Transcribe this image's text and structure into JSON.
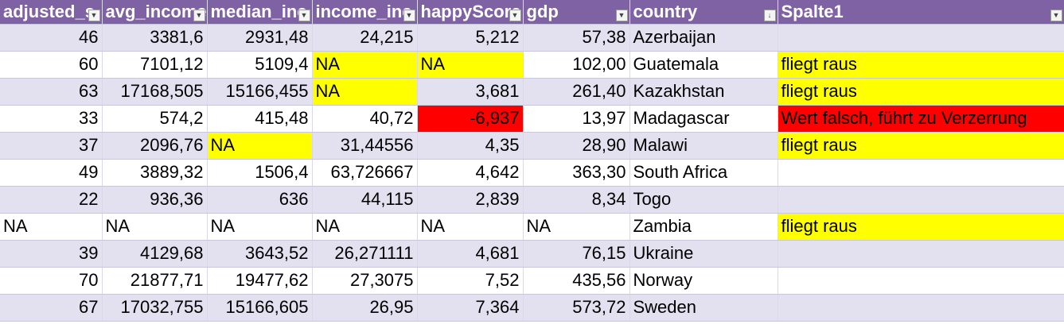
{
  "columns": [
    "adjusted_s",
    "avg_income",
    "median_inc",
    "income_ine",
    "happyScore",
    "gdp",
    "country",
    "Spalte1"
  ],
  "rows": [
    {
      "cells": [
        "46",
        "3381,6",
        "2931,48",
        "24,215",
        "5,212",
        "57,38",
        "Azerbaijan",
        ""
      ],
      "hl": [
        "",
        "",
        "",
        "",
        "",
        "",
        "",
        ""
      ]
    },
    {
      "cells": [
        "60",
        "7101,12",
        "5109,4",
        "NA",
        "NA",
        "102,00",
        "Guatemala",
        "fliegt raus"
      ],
      "hl": [
        "",
        "",
        "",
        "yellow",
        "yellow",
        "",
        "",
        "yellow"
      ]
    },
    {
      "cells": [
        "63",
        "17168,505",
        "15166,455",
        "NA",
        "3,681",
        "261,40",
        "Kazakhstan",
        "fliegt raus"
      ],
      "hl": [
        "",
        "",
        "",
        "yellow",
        "",
        "",
        "",
        "yellow"
      ]
    },
    {
      "cells": [
        "33",
        "574,2",
        "415,48",
        "40,72",
        "-6,937",
        "13,97",
        "Madagascar",
        "Wert falsch, führt zu Verzerrung"
      ],
      "hl": [
        "",
        "",
        "",
        "",
        "red",
        "",
        "",
        "red"
      ]
    },
    {
      "cells": [
        "37",
        "2096,76",
        "NA",
        "31,44556",
        "4,35",
        "28,90",
        "Malawi",
        "fliegt raus"
      ],
      "hl": [
        "",
        "",
        "yellow",
        "",
        "",
        "",
        "",
        "yellow"
      ]
    },
    {
      "cells": [
        "49",
        "3889,32",
        "1506,4",
        "63,726667",
        "4,642",
        "363,30",
        "South Africa",
        ""
      ],
      "hl": [
        "",
        "",
        "",
        "",
        "",
        "",
        "",
        ""
      ]
    },
    {
      "cells": [
        "22",
        "936,36",
        "636",
        "44,115",
        "2,839",
        "8,34",
        "Togo",
        ""
      ],
      "hl": [
        "",
        "",
        "",
        "",
        "",
        "",
        "",
        ""
      ]
    },
    {
      "cells": [
        "NA",
        "NA",
        "NA",
        "NA",
        "NA",
        "NA",
        "Zambia",
        "fliegt raus"
      ],
      "hl": [
        "",
        "",
        "",
        "",
        "",
        "",
        "",
        "yellow"
      ]
    },
    {
      "cells": [
        "39",
        "4129,68",
        "3643,52",
        "26,271111",
        "4,681",
        "76,15",
        "Ukraine",
        ""
      ],
      "hl": [
        "",
        "",
        "",
        "",
        "",
        "",
        "",
        ""
      ]
    },
    {
      "cells": [
        "70",
        "21877,71",
        "19477,62",
        "27,3075",
        "7,52",
        "435,56",
        "Norway",
        ""
      ],
      "hl": [
        "",
        "",
        "",
        "",
        "",
        "",
        "",
        ""
      ]
    },
    {
      "cells": [
        "67",
        "17032,755",
        "15166,605",
        "26,95",
        "7,364",
        "573,72",
        "Sweden",
        ""
      ],
      "hl": [
        "",
        "",
        "",
        "",
        "",
        "",
        "",
        ""
      ]
    }
  ],
  "colors": {
    "header": "#7f62a3",
    "band": "#e3e0ef",
    "highlight_yellow": "#ffff00",
    "highlight_red": "#ff0000"
  },
  "icons": {
    "filter": "dropdown-filter-icon",
    "sorted_filter": "sort-filter-icon"
  }
}
